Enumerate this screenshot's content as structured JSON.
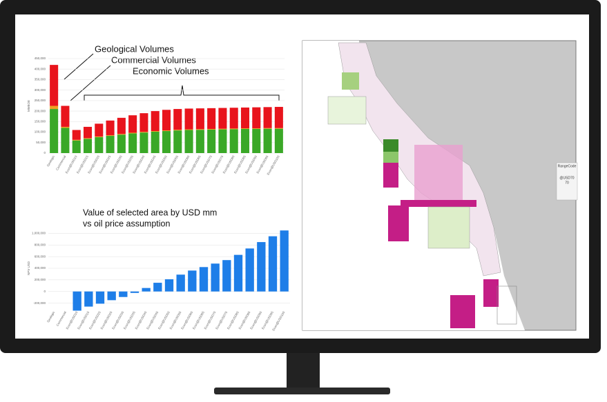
{
  "chart_data": [
    {
      "type": "stacked-bar",
      "annotations": [
        "Geological Volumes",
        "Commercial Volumes",
        "Economic Volumes"
      ],
      "y_label": "MMBOE",
      "categories": [
        "Geologic",
        "Commercial",
        "Econ@USD10",
        "Econ@USD15",
        "Econ@USD20",
        "Econ@USD25",
        "Econ@USD30",
        "Econ@USD35",
        "Econ@USD40",
        "Econ@USD45",
        "Econ@USD50",
        "Econ@USD55",
        "Econ@USD60",
        "Econ@USD65",
        "Econ@USD70",
        "Econ@USD75",
        "Econ@USD80",
        "Econ@USD85",
        "Econ@USD90",
        "Econ@USD95",
        "Econ@USD100"
      ],
      "series": [
        {
          "name": "Green",
          "color": "#3aa827",
          "values": [
            210000,
            120000,
            60000,
            68000,
            76000,
            82000,
            88000,
            94000,
            98000,
            102000,
            105000,
            108000,
            110000,
            111000,
            112000,
            113000,
            114000,
            115000,
            115000,
            116000,
            116000
          ]
        },
        {
          "name": "Orange",
          "color": "#f0a020",
          "values": [
            15000,
            5000,
            3000,
            3000,
            3000,
            3000,
            3000,
            3000,
            3000,
            3000,
            3000,
            3000,
            3000,
            3000,
            3000,
            3000,
            3000,
            3000,
            3000,
            3000,
            3000
          ]
        },
        {
          "name": "Red",
          "color": "#e8141c",
          "values": [
            195000,
            100000,
            47000,
            54000,
            61000,
            70000,
            77000,
            83000,
            89000,
            95000,
            98000,
            99000,
            99000,
            99000,
            99000,
            99000,
            99000,
            99000,
            100000,
            100000,
            101000
          ]
        }
      ],
      "ylim": [
        0,
        450000
      ],
      "yticks": [
        0,
        {
          "value": 50000,
          "label": "50,000"
        },
        {
          "value": 100000,
          "label": "100,000"
        },
        {
          "value": 150000,
          "label": "150,000"
        },
        {
          "value": 200000,
          "label": "200,000"
        },
        {
          "value": 250000,
          "label": "250,000"
        },
        {
          "value": 300000,
          "label": "300,000"
        },
        {
          "value": 350000,
          "label": "350,000"
        },
        {
          "value": 400000,
          "label": "400,000"
        },
        {
          "value": 450000,
          "label": "450,000"
        }
      ],
      "grid": true
    },
    {
      "type": "bar",
      "title_lines": [
        "Value of selected area by USD mm",
        "vs oil price assumption"
      ],
      "y_label": "NPV USD",
      "categories": [
        "Geologic",
        "Commercial",
        "Econ@USD10",
        "Econ@USD15",
        "Econ@USD20",
        "Econ@USD25",
        "Econ@USD30",
        "Econ@USD35",
        "Econ@USD40",
        "Econ@USD45",
        "Econ@USD50",
        "Econ@USD55",
        "Econ@USD60",
        "Econ@USD65",
        "Econ@USD70",
        "Econ@USD75",
        "Econ@USD80",
        "Econ@USD85",
        "Econ@USD90",
        "Econ@USD95",
        "Econ@USD100"
      ],
      "color": "#1e7ee8",
      "values": [
        null,
        null,
        -330000,
        -260000,
        -210000,
        -150000,
        -95000,
        -25000,
        60000,
        150000,
        210000,
        290000,
        360000,
        420000,
        480000,
        540000,
        630000,
        740000,
        850000,
        950000,
        1050000
      ],
      "ylim": [
        -300000,
        1100000
      ],
      "yticks": [
        {
          "value": -200000,
          "label": "-200,000"
        },
        0,
        {
          "value": 200000,
          "label": "200,000"
        },
        {
          "value": 400000,
          "label": "400,000"
        },
        {
          "value": 600000,
          "label": "600,000"
        },
        {
          "value": 800000,
          "label": "800,000"
        },
        {
          "value": 1000000,
          "label": "1,000,000"
        }
      ],
      "grid": true
    }
  ],
  "map_legend": {
    "title": "RangeCode",
    "item": "@USD70",
    "value": "70"
  }
}
